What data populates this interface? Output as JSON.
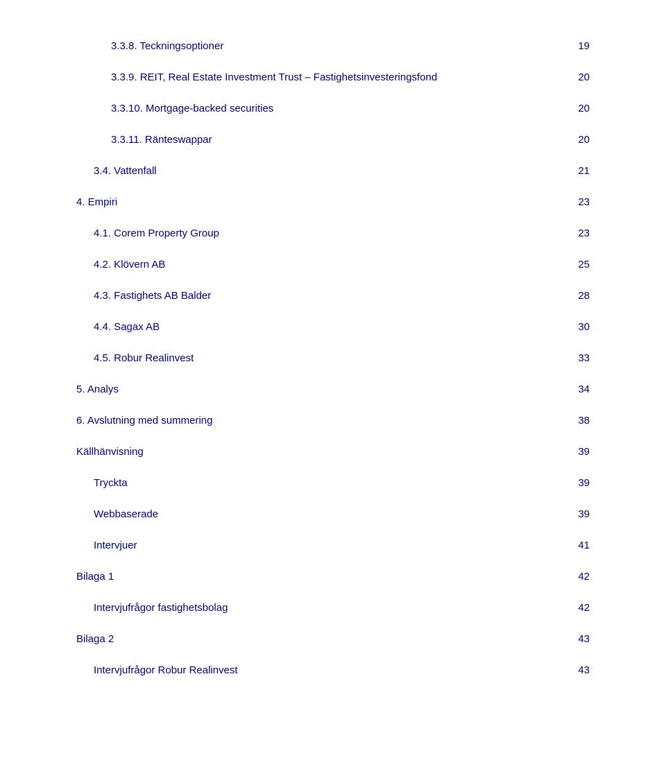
{
  "colors": {
    "text": "#000080",
    "background": "#ffffff",
    "leader": "#000080"
  },
  "typography": {
    "font_family": "Verdana",
    "base_fontsize_pt": 11
  },
  "toc": {
    "entries": [
      {
        "level": 3,
        "label": "3.3.8. Teckningsoptioner",
        "page": "19"
      },
      {
        "level": 3,
        "label": "3.3.9. REIT, Real Estate Investment Trust – Fastighetsinvesteringsfond",
        "page": "20"
      },
      {
        "level": 3,
        "label": "3.3.10. Mortgage-backed securities",
        "page": "20"
      },
      {
        "level": 3,
        "label": "3.3.11. Ränteswappar",
        "page": "20"
      },
      {
        "level": 2,
        "label": "3.4. Vattenfall",
        "page": "21"
      },
      {
        "level": 1,
        "label": "4. Empiri",
        "page": "23"
      },
      {
        "level": 2,
        "label": "4.1. Corem Property Group",
        "page": "23"
      },
      {
        "level": 2,
        "label": "4.2. Klövern AB",
        "page": "25"
      },
      {
        "level": 2,
        "label": "4.3. Fastighets AB Balder",
        "page": "28"
      },
      {
        "level": 2,
        "label": "4.4. Sagax AB",
        "page": "30"
      },
      {
        "level": 2,
        "label": "4.5. Robur Realinvest",
        "page": "33"
      },
      {
        "level": 1,
        "label": "5. Analys",
        "page": "34"
      },
      {
        "level": 1,
        "label": "6. Avslutning med summering",
        "page": "38"
      },
      {
        "level": 0,
        "label": "Källhänvisning",
        "page": "39"
      },
      {
        "level": 2,
        "label": "Tryckta",
        "page": "39"
      },
      {
        "level": 2,
        "label": "Webbaserade",
        "page": "39"
      },
      {
        "level": 2,
        "label": "Intervjuer",
        "page": "41"
      },
      {
        "level": 0,
        "label": "Bilaga 1",
        "page": "42"
      },
      {
        "level": 2,
        "label": "Intervjufrågor fastighetsbolag",
        "page": "42"
      },
      {
        "level": 0,
        "label": "Bilaga 2",
        "page": "43"
      },
      {
        "level": 2,
        "label": "Intervjufrågor Robur Realinvest",
        "page": "43"
      }
    ]
  }
}
